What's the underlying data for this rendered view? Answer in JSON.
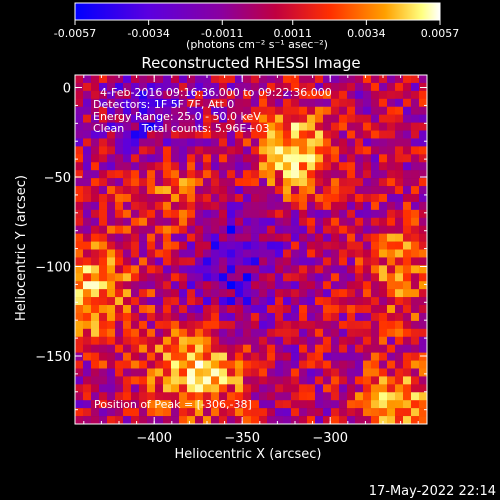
{
  "chart_data": {
    "type": "heatmap",
    "title": "Reconstructed RHESSI Image",
    "xlabel": "Heliocentric X (arcsec)",
    "ylabel": "Heliocentric Y (arcsec)",
    "xlim": [
      -445,
      -245
    ],
    "ylim": [
      -188,
      7
    ],
    "x_ticks": [
      -400,
      -350,
      -300
    ],
    "y_ticks": [
      0,
      -50,
      -100,
      -150
    ],
    "grid": false,
    "colorbar": {
      "label": "(photons cm⁻² s⁻¹ asec⁻²)",
      "ticks": [
        "-0.0057",
        "-0.0034",
        "-0.0011",
        "0.0011",
        "0.0034",
        "0.0057"
      ],
      "range": [
        -0.0057,
        0.0057
      ],
      "colors": [
        "#0000ff",
        "#5a00e0",
        "#8a00a0",
        "#c00040",
        "#ff3000",
        "#ffa000",
        "#ffff80",
        "#ffffff"
      ]
    },
    "annotations": [
      "4-Feb-2016 09:16:36.000 to 09:22:36.000",
      "Detectors: 1F 5F 7F, Att 0",
      "Energy Range: 25.0 - 50.0 keV",
      "Clean     Total counts: 5.96E+03"
    ],
    "peak_label": "Position of Peak = [-306,-38]",
    "peak": [
      -306,
      -38
    ]
  },
  "timestamp": "17-May-2022 22:14"
}
